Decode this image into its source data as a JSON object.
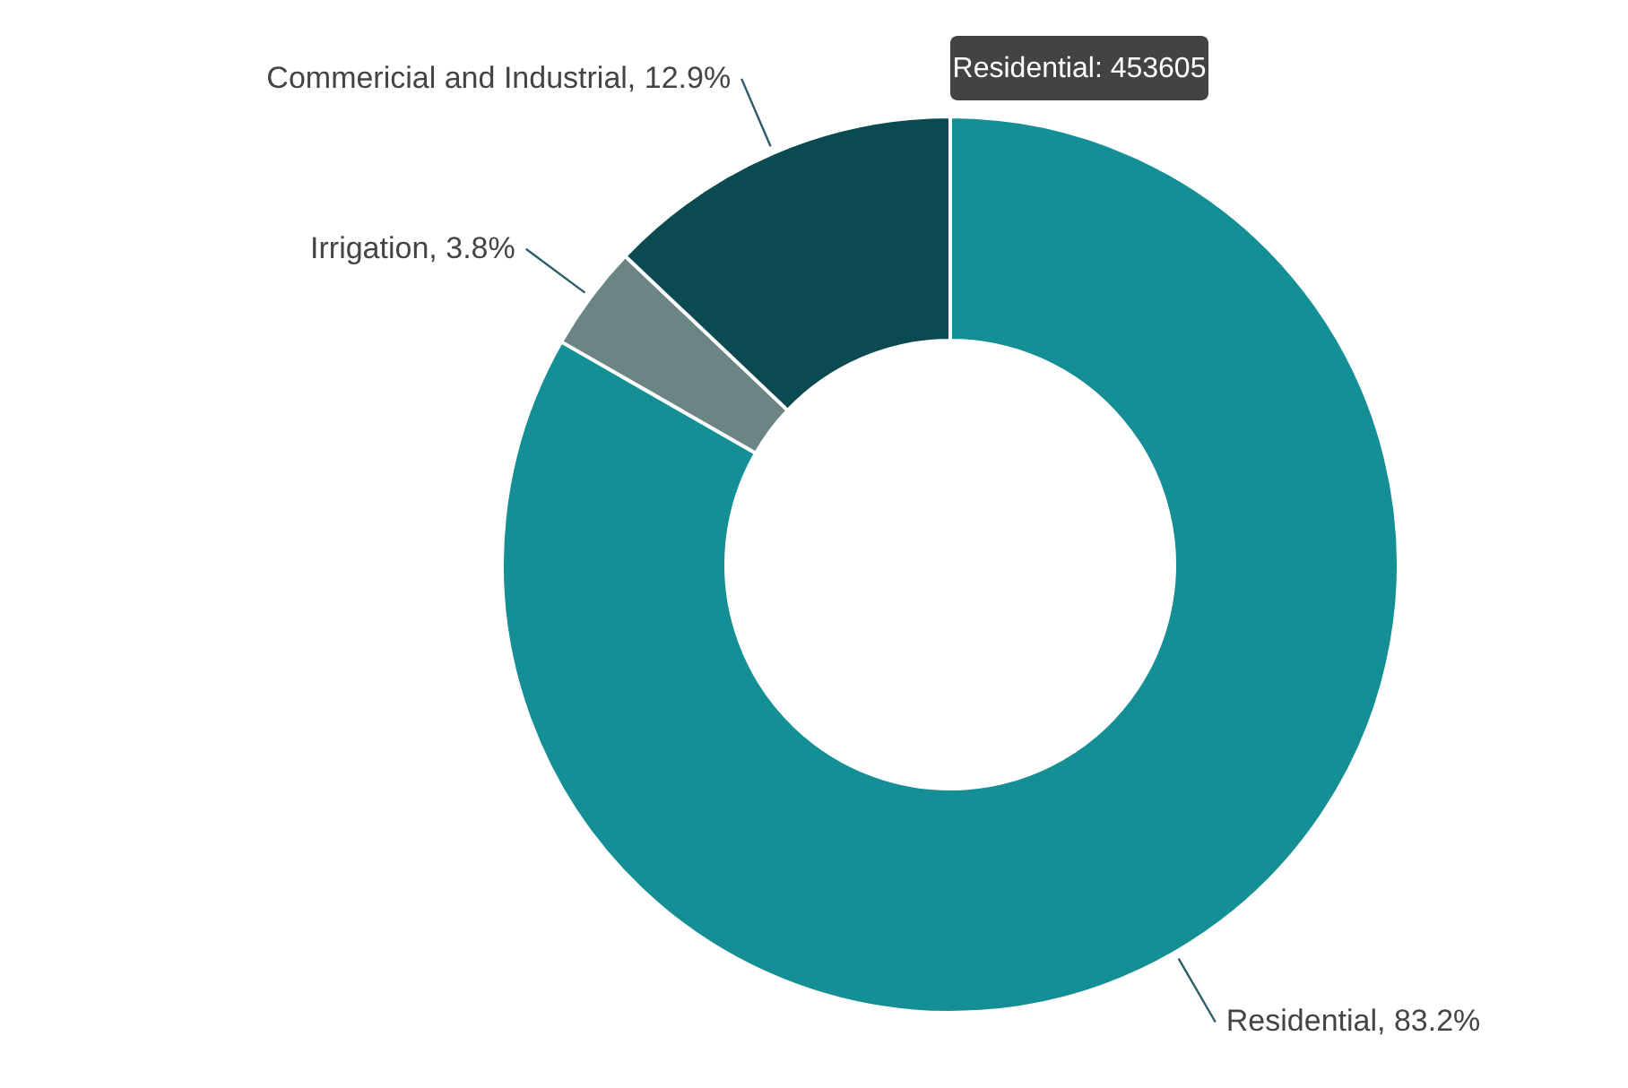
{
  "chart_data": {
    "type": "donut",
    "categories": [
      "Residential",
      "Irrigation",
      "Commericial and Industrial"
    ],
    "values": [
      83.2,
      3.8,
      12.9
    ],
    "value_labels": [
      "83.2%",
      "3.8%",
      "12.9%"
    ],
    "colors": [
      "#148f96",
      "#6b8584",
      "#0b4a51"
    ],
    "annotations": [
      "Residential: 453605"
    ]
  }
}
